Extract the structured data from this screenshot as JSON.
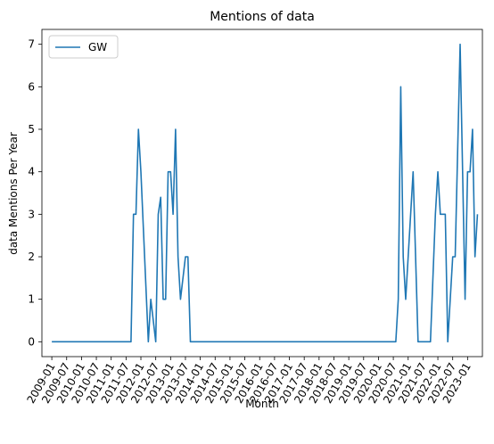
{
  "chart_data": {
    "type": "line",
    "title": "Mentions of data",
    "xlabel": "Month",
    "ylabel": "data Mentions Per Year",
    "ylim": [
      -0.35,
      7.35
    ],
    "yticks": [
      0,
      1,
      2,
      3,
      4,
      5,
      6,
      7
    ],
    "xlim": [
      "2008-09",
      "2023-07"
    ],
    "xticks": [
      "2009-01",
      "2009-07",
      "2010-01",
      "2010-07",
      "2011-01",
      "2011-07",
      "2012-01",
      "2012-07",
      "2013-01",
      "2013-07",
      "2014-01",
      "2014-07",
      "2015-01",
      "2015-07",
      "2016-01",
      "2016-07",
      "2017-01",
      "2017-07",
      "2018-01",
      "2018-07",
      "2019-01",
      "2019-07",
      "2020-01",
      "2020-07",
      "2021-01",
      "2021-07",
      "2022-01",
      "2022-07",
      "2023-01"
    ],
    "grid": false,
    "legend": "upper-left",
    "series": [
      {
        "name": "GW",
        "color": "#1f77b4",
        "points": [
          [
            "2009-01",
            0
          ],
          [
            "2011-09",
            0
          ],
          [
            "2011-10",
            3
          ],
          [
            "2011-11",
            3
          ],
          [
            "2011-12",
            5
          ],
          [
            "2012-01",
            4
          ],
          [
            "2012-04",
            0
          ],
          [
            "2012-05",
            1
          ],
          [
            "2012-07",
            0
          ],
          [
            "2012-08",
            3
          ],
          [
            "2012-09",
            3.4
          ],
          [
            "2012-10",
            1
          ],
          [
            "2012-11",
            1
          ],
          [
            "2012-12",
            4
          ],
          [
            "2013-01",
            4
          ],
          [
            "2013-02",
            3
          ],
          [
            "2013-03",
            5
          ],
          [
            "2013-04",
            2
          ],
          [
            "2013-05",
            1
          ],
          [
            "2013-07",
            2
          ],
          [
            "2013-08",
            2
          ],
          [
            "2013-09",
            0
          ],
          [
            "2020-08",
            0
          ],
          [
            "2020-09",
            1
          ],
          [
            "2020-10",
            6
          ],
          [
            "2020-11",
            2
          ],
          [
            "2020-12",
            1
          ],
          [
            "2021-03",
            4
          ],
          [
            "2021-05",
            0
          ],
          [
            "2021-10",
            0
          ],
          [
            "2021-12",
            3
          ],
          [
            "2022-01",
            4
          ],
          [
            "2022-02",
            3
          ],
          [
            "2022-04",
            3
          ],
          [
            "2022-05",
            0
          ],
          [
            "2022-06",
            1
          ],
          [
            "2022-07",
            2
          ],
          [
            "2022-08",
            2
          ],
          [
            "2022-10",
            7
          ],
          [
            "2022-12",
            1
          ],
          [
            "2023-01",
            4
          ],
          [
            "2023-02",
            4
          ],
          [
            "2023-03",
            5
          ],
          [
            "2023-04",
            2
          ],
          [
            "2023-05",
            3
          ]
        ]
      }
    ]
  }
}
